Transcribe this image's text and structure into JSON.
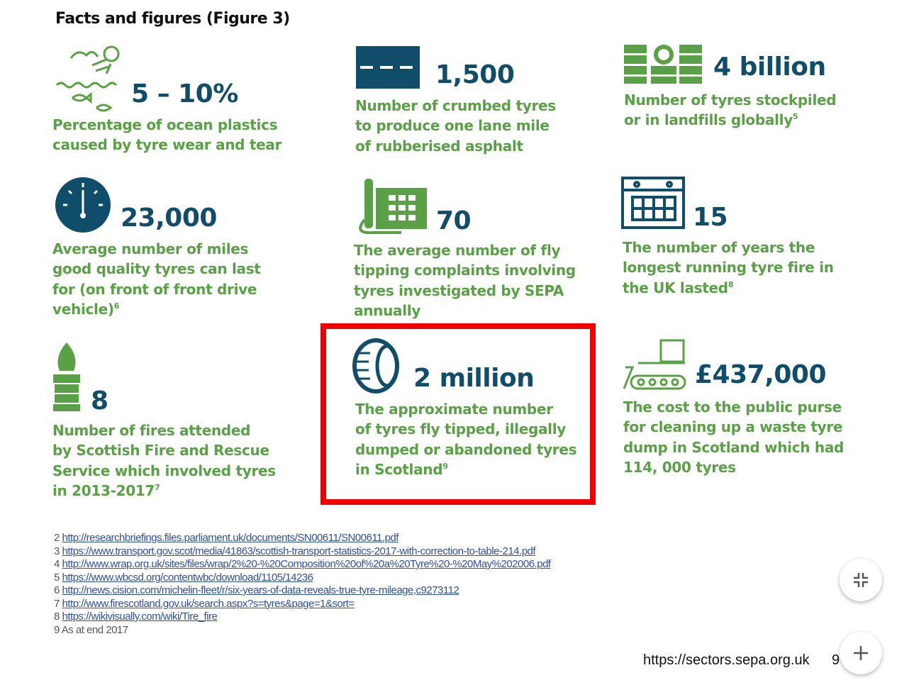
{
  "title": "Facts and figures (Figure 3)",
  "facts": [
    {
      "figure": "5 – 10%",
      "lines": [
        "Percentage of ocean plastics",
        "caused by tyre wear and tear"
      ]
    },
    {
      "figure": "1,500",
      "lines": [
        "Number of crumbed tyres",
        "to produce one lane mile",
        "of rubberised asphalt"
      ]
    },
    {
      "figure": "4 billion",
      "lines": [
        "Number of tyres stockpiled",
        "or in landfills globally"
      ],
      "note": "5"
    },
    {
      "figure": "23,000",
      "lines": [
        "Average number of miles",
        "good quality tyres can last",
        "for (on front of front drive",
        "vehicle)"
      ],
      "note": "6"
    },
    {
      "figure": "70",
      "lines": [
        "The average number of fly",
        "tipping complaints involving",
        "tyres investigated by SEPA",
        "annually"
      ]
    },
    {
      "figure": "15",
      "lines": [
        "The number of years the",
        "longest running tyre fire in",
        "the UK lasted"
      ],
      "note": "8"
    },
    {
      "figure": "8",
      "lines": [
        "Number of fires attended",
        "by Scottish Fire and Rescue",
        "Service which involved tyres",
        "in 2013-2017"
      ],
      "note": "7"
    },
    {
      "figure": "2 million",
      "lines": [
        "The approximate number",
        "of tyres fly tipped, illegally",
        "dumped or abandoned tyres",
        "in Scotland"
      ],
      "note": "9"
    },
    {
      "figure": "£437,000",
      "lines": [
        "The cost to the public purse",
        "for cleaning up a waste tyre",
        "dump in Scotland which had",
        "114, 000 tyres"
      ]
    }
  ],
  "footnotes": [
    {
      "number": "2",
      "link": "http://researchbriefings.files.parliament.uk/documents/SN00611/SN00611.pdf"
    },
    {
      "number": "3",
      "link": "https://www.transport.gov.scot/media/41863/scottish-transport-statistics-2017-with-correction-to-table-214.pdf"
    },
    {
      "number": "4",
      "link": "http://www.wrap.org.uk/sites/files/wrap/2%20-%20Composition%20of%20a%20Tyre%20-%20May%202006.pdf"
    },
    {
      "number": "5",
      "link": "https://www.wbcsd.org/contentwbc/download/1105/14236"
    },
    {
      "number": "6",
      "link": "http://news.cision.com/michelin-fleet/r/six-years-of-data-reveals-true-tyre-mileage,c9273112"
    },
    {
      "number": "7",
      "link": "http://www.firescotland.gov.uk/search.aspx?s=tyres&page=1&sort="
    },
    {
      "number": "8",
      "link": "https://wikivisually.com/wiki/Tire_fire"
    },
    {
      "number": "9",
      "text": "As at end 2017"
    }
  ],
  "footer": {
    "url": "https://sectors.sepa.org.uk",
    "page": "9"
  }
}
